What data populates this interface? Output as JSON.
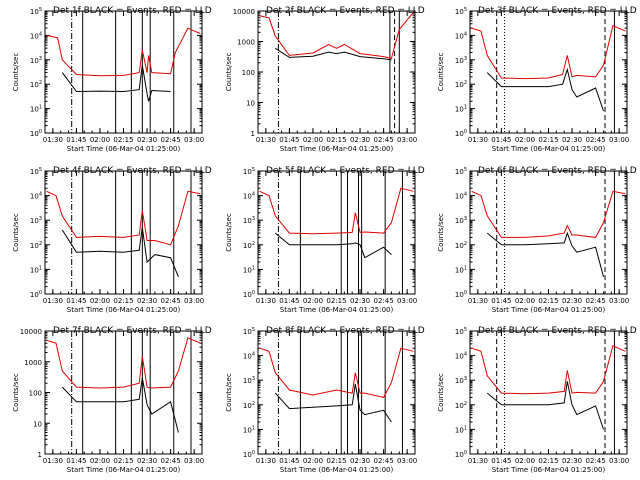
{
  "figure": {
    "x_tick_labels": [
      "01:30",
      "01:45",
      "02:00",
      "02:15",
      "02:30",
      "02:45",
      "03:00"
    ],
    "xlabel": "Start Time (06-Mar-04 01:25:00)",
    "ylabel": "Counts/sec",
    "colors": {
      "events": "#000000",
      "lld": "#e00000",
      "axes": "#000000",
      "background": "#ffffff"
    }
  },
  "chart_data": [
    {
      "type": "line",
      "title": "Det 1f BLACK = Events, RED = LLD",
      "xlabel": "Start Time (06-Mar-04 01:25:00)",
      "ylabel": "Counts/sec",
      "xlim": [
        "01:25",
        "03:05"
      ],
      "y_scale": "log",
      "ylim": [
        1,
        100000
      ],
      "y_tick_labels": [
        "10^0",
        "10^1",
        "10^2",
        "10^3",
        "10^4",
        "10^5"
      ],
      "x": [
        "01:26",
        "01:33",
        "01:36",
        "01:45",
        "02:00",
        "02:15",
        "02:25",
        "02:27",
        "02:30",
        "02:31",
        "02:33",
        "02:45",
        "02:48",
        "02:56",
        "03:00",
        "03:04"
      ],
      "series": [
        {
          "name": "RED = LLD",
          "color": "#e00000",
          "values": [
            10000,
            8000,
            1000,
            250,
            220,
            230,
            300,
            2500,
            300,
            1500,
            300,
            270,
            2000,
            20000,
            15000,
            12000
          ]
        },
        {
          "name": "BLACK = Events",
          "color": "#000000",
          "values": [
            null,
            null,
            300,
            50,
            52,
            50,
            60,
            600,
            40,
            20,
            55,
            50,
            null,
            null,
            null,
            null
          ]
        }
      ],
      "vlines": [
        {
          "time": "01:42",
          "style": "dash-dot"
        },
        {
          "time": "01:49",
          "style": "solid"
        },
        {
          "time": "02:10",
          "style": "solid"
        },
        {
          "time": "02:20",
          "style": "solid"
        },
        {
          "time": "02:27",
          "style": "solid"
        },
        {
          "time": "02:32",
          "style": "solid"
        },
        {
          "time": "02:47",
          "style": "solid"
        },
        {
          "time": "02:58",
          "style": "solid"
        }
      ]
    },
    {
      "type": "line",
      "title": "Det 2f BLACK = Events, RED = LLD",
      "xlabel": "Start Time (06-Mar-04 01:25:00)",
      "ylabel": "Counts/sec",
      "xlim": [
        "01:25",
        "03:05"
      ],
      "y_scale": "log",
      "ylim": [
        1,
        10000
      ],
      "y_tick_labels": [
        "1",
        "10",
        "100",
        "1000",
        "10000"
      ],
      "x": [
        "01:26",
        "01:32",
        "01:36",
        "01:45",
        "02:00",
        "02:10",
        "02:15",
        "02:20",
        "02:30",
        "02:45",
        "02:50",
        "02:55",
        "03:04"
      ],
      "series": [
        {
          "name": "RED = LLD",
          "color": "#e00000",
          "values": [
            7000,
            6000,
            1500,
            350,
            420,
            800,
            600,
            800,
            400,
            320,
            280,
            2500,
            9000
          ]
        },
        {
          "name": "BLACK = Events",
          "color": "#000000",
          "values": [
            null,
            null,
            600,
            300,
            330,
            450,
            400,
            450,
            320,
            270,
            250,
            null,
            null
          ]
        }
      ],
      "vlines": [
        {
          "time": "01:38",
          "style": "dash-dot"
        },
        {
          "time": "02:49",
          "style": "solid"
        },
        {
          "time": "02:52",
          "style": "dashed"
        },
        {
          "time": "02:55",
          "style": "solid"
        }
      ]
    },
    {
      "type": "line",
      "title": "Det 3f BLACK = Events, RED = LLD",
      "xlabel": "Start Time (06-Mar-04 01:25:00)",
      "ylabel": "Counts/sec",
      "xlim": [
        "01:25",
        "03:05"
      ],
      "y_scale": "log",
      "ylim": [
        1,
        100000
      ],
      "y_tick_labels": [
        "10^0",
        "10^1",
        "10^2",
        "10^3",
        "10^4",
        "10^5"
      ],
      "x": [
        "01:26",
        "01:32",
        "01:36",
        "01:45",
        "02:00",
        "02:15",
        "02:24",
        "02:27",
        "02:30",
        "02:33",
        "02:45",
        "02:50",
        "02:56",
        "03:04"
      ],
      "series": [
        {
          "name": "RED = LLD",
          "color": "#e00000",
          "values": [
            20000,
            15000,
            1500,
            180,
            170,
            180,
            250,
            1500,
            200,
            230,
            200,
            600,
            25000,
            15000
          ]
        },
        {
          "name": "BLACK = Events",
          "color": "#000000",
          "values": [
            null,
            null,
            300,
            80,
            80,
            80,
            100,
            400,
            60,
            30,
            70,
            8,
            null,
            null
          ]
        }
      ],
      "vlines": [
        {
          "time": "01:42",
          "style": "dashed"
        },
        {
          "time": "01:47",
          "style": "dotted"
        },
        {
          "time": "02:51",
          "style": "dashed"
        },
        {
          "time": "02:57",
          "style": "solid"
        }
      ]
    },
    {
      "type": "line",
      "title": "Det 4f BLACK = Events, RED = LLD",
      "xlabel": "Start Time (06-Mar-04 01:25:00)",
      "ylabel": "Counts/sec",
      "xlim": [
        "01:25",
        "03:05"
      ],
      "y_scale": "log",
      "ylim": [
        1,
        100000
      ],
      "y_tick_labels": [
        "10^0",
        "10^1",
        "10^2",
        "10^3",
        "10^4",
        "10^5"
      ],
      "x": [
        "01:26",
        "01:32",
        "01:36",
        "01:45",
        "02:00",
        "02:15",
        "02:25",
        "02:27",
        "02:30",
        "02:35",
        "02:45",
        "02:50",
        "02:56",
        "03:04"
      ],
      "series": [
        {
          "name": "RED = LLD",
          "color": "#e00000",
          "values": [
            15000,
            10000,
            1500,
            200,
            220,
            200,
            250,
            2500,
            150,
            150,
            100,
            600,
            15000,
            12000
          ]
        },
        {
          "name": "BLACK = Events",
          "color": "#000000",
          "values": [
            null,
            null,
            400,
            50,
            55,
            50,
            60,
            500,
            20,
            40,
            30,
            5,
            null,
            null
          ]
        }
      ],
      "vlines": [
        {
          "time": "01:42",
          "style": "dash-dot"
        },
        {
          "time": "01:49",
          "style": "solid"
        },
        {
          "time": "02:10",
          "style": "solid"
        },
        {
          "time": "02:20",
          "style": "solid"
        },
        {
          "time": "02:27",
          "style": "solid"
        },
        {
          "time": "02:32",
          "style": "solid"
        },
        {
          "time": "02:47",
          "style": "solid"
        },
        {
          "time": "02:58",
          "style": "solid"
        }
      ]
    },
    {
      "type": "line",
      "title": "Det 5f BLACK = Events, RED = LLD",
      "xlabel": "Start Time (06-Mar-04 01:25:00)",
      "ylabel": "Counts/sec",
      "xlim": [
        "01:25",
        "03:05"
      ],
      "y_scale": "log",
      "ylim": [
        1,
        100000
      ],
      "y_tick_labels": [
        "10^0",
        "10^1",
        "10^2",
        "10^3",
        "10^4",
        "10^5"
      ],
      "x": [
        "01:26",
        "01:32",
        "01:36",
        "01:45",
        "02:00",
        "02:15",
        "02:25",
        "02:27",
        "02:30",
        "02:33",
        "02:45",
        "02:50",
        "02:56",
        "03:04"
      ],
      "series": [
        {
          "name": "RED = LLD",
          "color": "#e00000",
          "values": [
            15000,
            10000,
            1500,
            300,
            280,
            300,
            320,
            2000,
            320,
            330,
            300,
            800,
            20000,
            15000
          ]
        },
        {
          "name": "BLACK = Events",
          "color": "#000000",
          "values": [
            null,
            null,
            300,
            100,
            100,
            100,
            110,
            120,
            100,
            30,
            80,
            40,
            null,
            null
          ]
        }
      ],
      "vlines": [
        {
          "time": "01:38",
          "style": "dash-dot"
        },
        {
          "time": "01:52",
          "style": "solid"
        },
        {
          "time": "02:18",
          "style": "solid"
        },
        {
          "time": "02:22",
          "style": "solid"
        },
        {
          "time": "02:29",
          "style": "solid"
        },
        {
          "time": "02:31",
          "style": "solid"
        },
        {
          "time": "02:46",
          "style": "solid"
        },
        {
          "time": "02:57",
          "style": "solid"
        }
      ]
    },
    {
      "type": "line",
      "title": "Det 6f BLACK = Events, RED = LLD",
      "xlabel": "Start Time (06-Mar-04 01:25:00)",
      "ylabel": "Counts/sec",
      "xlim": [
        "01:25",
        "03:05"
      ],
      "y_scale": "log",
      "ylim": [
        1,
        100000
      ],
      "y_tick_labels": [
        "10^0",
        "10^1",
        "10^2",
        "10^3",
        "10^4",
        "10^5"
      ],
      "x": [
        "01:26",
        "01:32",
        "01:36",
        "01:45",
        "02:00",
        "02:15",
        "02:25",
        "02:27",
        "02:30",
        "02:33",
        "02:45",
        "02:50",
        "02:56",
        "03:04"
      ],
      "series": [
        {
          "name": "RED = LLD",
          "color": "#e00000",
          "values": [
            15000,
            10000,
            1500,
            200,
            200,
            230,
            300,
            600,
            250,
            250,
            200,
            800,
            15000,
            12000
          ]
        },
        {
          "name": "BLACK = Events",
          "color": "#000000",
          "values": [
            null,
            null,
            300,
            100,
            100,
            110,
            120,
            300,
            90,
            50,
            80,
            5,
            null,
            null
          ]
        }
      ],
      "vlines": [
        {
          "time": "01:42",
          "style": "dashed"
        },
        {
          "time": "01:47",
          "style": "dotted"
        },
        {
          "time": "02:51",
          "style": "dashed"
        },
        {
          "time": "02:57",
          "style": "solid"
        }
      ]
    },
    {
      "type": "line",
      "title": "Det 7f BLACK = Events, RED = LLD",
      "xlabel": "Start Time (06-Mar-04 01:25:00)",
      "ylabel": "Counts/sec",
      "xlim": [
        "01:25",
        "03:05"
      ],
      "y_scale": "log",
      "ylim": [
        1,
        10000
      ],
      "y_tick_labels": [
        "1",
        "10",
        "100",
        "1000",
        "10000"
      ],
      "x": [
        "01:26",
        "01:32",
        "01:36",
        "01:45",
        "02:00",
        "02:15",
        "02:25",
        "02:27",
        "02:30",
        "02:33",
        "02:45",
        "02:50",
        "02:56",
        "03:04"
      ],
      "series": [
        {
          "name": "RED = LLD",
          "color": "#e00000",
          "values": [
            5000,
            4000,
            500,
            150,
            140,
            150,
            200,
            1500,
            150,
            140,
            150,
            500,
            6000,
            4000
          ]
        },
        {
          "name": "BLACK = Events",
          "color": "#000000",
          "values": [
            null,
            null,
            150,
            50,
            50,
            50,
            60,
            300,
            40,
            20,
            50,
            5,
            null,
            null
          ]
        }
      ],
      "vlines": [
        {
          "time": "01:42",
          "style": "dash-dot"
        },
        {
          "time": "01:49",
          "style": "solid"
        },
        {
          "time": "02:10",
          "style": "solid"
        },
        {
          "time": "02:20",
          "style": "solid"
        },
        {
          "time": "02:27",
          "style": "solid"
        },
        {
          "time": "02:32",
          "style": "solid"
        },
        {
          "time": "02:47",
          "style": "solid"
        },
        {
          "time": "02:58",
          "style": "solid"
        }
      ]
    },
    {
      "type": "line",
      "title": "Det 8f BLACK = Events, RED = LLD",
      "xlabel": "Start Time (06-Mar-04 01:25:00)",
      "ylabel": "Counts/sec",
      "xlim": [
        "01:25",
        "03:05"
      ],
      "y_scale": "log",
      "ylim": [
        1,
        100000
      ],
      "y_tick_labels": [
        "10^0",
        "10^1",
        "10^2",
        "10^3",
        "10^4",
        "10^5"
      ],
      "x": [
        "01:26",
        "01:32",
        "01:36",
        "01:45",
        "02:00",
        "02:15",
        "02:25",
        "02:27",
        "02:30",
        "02:33",
        "02:45",
        "02:50",
        "02:56",
        "03:04"
      ],
      "series": [
        {
          "name": "RED = LLD",
          "color": "#e00000",
          "values": [
            20000,
            15000,
            2000,
            400,
            250,
            400,
            300,
            2000,
            300,
            300,
            200,
            800,
            20000,
            15000
          ]
        },
        {
          "name": "BLACK = Events",
          "color": "#000000",
          "values": [
            null,
            null,
            300,
            70,
            80,
            90,
            100,
            700,
            60,
            40,
            60,
            20,
            null,
            null
          ]
        }
      ],
      "vlines": [
        {
          "time": "01:38",
          "style": "dash-dot"
        },
        {
          "time": "01:52",
          "style": "solid"
        },
        {
          "time": "02:18",
          "style": "solid"
        },
        {
          "time": "02:22",
          "style": "solid"
        },
        {
          "time": "02:29",
          "style": "solid"
        },
        {
          "time": "02:31",
          "style": "solid"
        },
        {
          "time": "02:46",
          "style": "solid"
        },
        {
          "time": "02:57",
          "style": "solid"
        }
      ]
    },
    {
      "type": "line",
      "title": "Det 9f BLACK = Events, RED = LLD",
      "xlabel": "Start Time (06-Mar-04 01:25:00)",
      "ylabel": "Counts/sec",
      "xlim": [
        "01:25",
        "03:05"
      ],
      "y_scale": "log",
      "ylim": [
        1,
        100000
      ],
      "y_tick_labels": [
        "10^0",
        "10^1",
        "10^2",
        "10^3",
        "10^4",
        "10^5"
      ],
      "x": [
        "01:26",
        "01:32",
        "01:36",
        "01:45",
        "02:00",
        "02:15",
        "02:25",
        "02:27",
        "02:30",
        "02:33",
        "02:45",
        "02:50",
        "02:56",
        "03:04"
      ],
      "series": [
        {
          "name": "RED = LLD",
          "color": "#e00000",
          "values": [
            20000,
            15000,
            1500,
            300,
            280,
            300,
            350,
            2500,
            300,
            320,
            300,
            900,
            25000,
            15000
          ]
        },
        {
          "name": "BLACK = Events",
          "color": "#000000",
          "values": [
            null,
            null,
            300,
            100,
            100,
            100,
            120,
            900,
            100,
            40,
            90,
            10,
            null,
            null
          ]
        }
      ],
      "vlines": [
        {
          "time": "01:42",
          "style": "dashed"
        },
        {
          "time": "01:47",
          "style": "dotted"
        },
        {
          "time": "02:51",
          "style": "dashed"
        },
        {
          "time": "02:57",
          "style": "solid"
        }
      ]
    }
  ]
}
